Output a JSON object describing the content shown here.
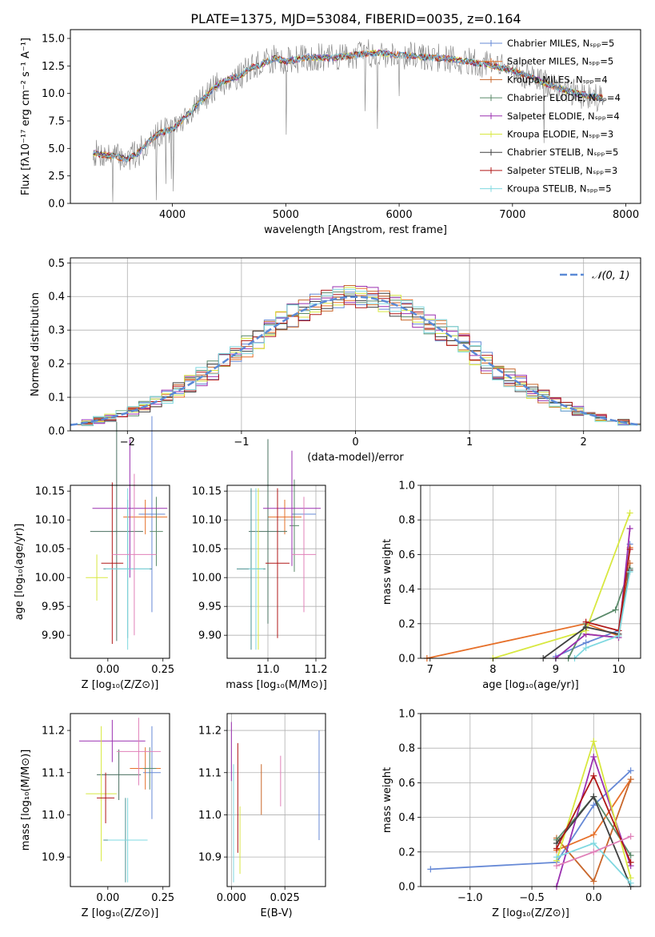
{
  "colors": [
    "#6689d6",
    "#e6702a",
    "#c8662a",
    "#5a8a6a",
    "#9b30b0",
    "#d8e840",
    "#404040",
    "#b01818",
    "#7fd8e0"
  ],
  "chart_data": [
    {
      "id": "spectrum",
      "type": "line",
      "title": "PLATE=1375, MJD=53084, FIBERID=0035, z=0.164",
      "xlabel": "wavelength [Angstrom, rest frame]",
      "ylabel": "Flux [fλ10⁻¹⁷ erg cm⁻² s⁻¹ A⁻¹]",
      "xlim": [
        3100,
        8130
      ],
      "ylim": [
        0,
        15.8
      ],
      "xticks": [
        "4000",
        "5000",
        "6000",
        "7000",
        "8000"
      ],
      "yticks": [
        "0.0",
        "2.5",
        "5.0",
        "7.5",
        "10.0",
        "12.5",
        "15.0"
      ],
      "continuum": {
        "x": [
          3300,
          3400,
          3500,
          3600,
          3700,
          3800,
          3900,
          4000,
          4100,
          4200,
          4300,
          4400,
          4500,
          4600,
          4700,
          4800,
          4900,
          5000,
          5200,
          5400,
          5600,
          5800,
          6000,
          6200,
          6400,
          6600,
          6800,
          7000,
          7200,
          7400,
          7600,
          7800
        ],
        "y": [
          4.6,
          4.4,
          4.3,
          4.0,
          4.6,
          5.7,
          6.5,
          6.7,
          7.7,
          8.8,
          9.8,
          10.8,
          11.3,
          11.6,
          12.4,
          12.7,
          13.2,
          12.9,
          13.3,
          13.2,
          13.5,
          13.7,
          13.5,
          13.3,
          13.2,
          12.9,
          12.6,
          12.1,
          11.3,
          10.5,
          9.9,
          9.6
        ]
      },
      "legend_position": "upper right",
      "legend": [
        "Chabrier MILES, Nₛₚₚ=5",
        "Salpeter MILES, Nₛₚₚ=5",
        "Kroupa MILES, Nₛₚₚ=4",
        "Chabrier ELODIE, Nₛₚₚ=4",
        "Salpeter ELODIE, Nₛₚₚ=4",
        "Kroupa ELODIE, Nₛₚₚ=3",
        "Chabrier STELIB, Nₛₚₚ=5",
        "Salpeter STELIB, Nₛₚₚ=3",
        "Kroupa STELIB, Nₛₚₚ=5"
      ]
    },
    {
      "id": "residuals",
      "type": "line",
      "xlabel": "(data-model)/error",
      "ylabel": "Normed distribution",
      "xlim": [
        -2.5,
        2.5
      ],
      "ylim": [
        0,
        0.515
      ],
      "xticks": [
        "−2",
        "−1",
        "0",
        "1",
        "2"
      ],
      "yticks": [
        "0.0",
        "0.1",
        "0.2",
        "0.3",
        "0.4",
        "0.5"
      ],
      "legend": [
        "𝒩(0, 1)"
      ],
      "legend_position": "upper right",
      "bin_width": 0.1
    },
    {
      "id": "age-vs-z",
      "type": "scatter",
      "xlabel": "Z [log₁₀(Z/Z⊙)]",
      "ylabel": "age  [log₁₀(age/yr)]",
      "xlim": [
        -0.17,
        0.28
      ],
      "ylim": [
        9.86,
        10.16
      ],
      "xticks": [
        "0.00",
        "0.25"
      ],
      "yticks": [
        "9.90",
        "9.95",
        "10.00",
        "10.05",
        "10.10",
        "10.15"
      ],
      "points": [
        {
          "x": 0.2,
          "y": 10.11,
          "xerr": 0.06,
          "yerr": 0.17
        },
        {
          "x": 0.17,
          "y": 10.105,
          "xerr": 0.1,
          "yerr": 0.03
        },
        {
          "x": 0.22,
          "y": 10.08,
          "xerr": 0.03,
          "yerr": 0.06
        },
        {
          "x": 0.04,
          "y": 10.08,
          "xerr": 0.12,
          "yerr": 0.19
        },
        {
          "x": 0.1,
          "y": 10.12,
          "xerr": 0.17,
          "yerr": 0.12
        },
        {
          "x": -0.05,
          "y": 10.0,
          "xerr": 0.05,
          "yerr": 0.04
        },
        {
          "x": 0.09,
          "y": 10.015,
          "xerr": 0.11,
          "yerr": 0.12
        },
        {
          "x": 0.02,
          "y": 10.025,
          "xerr": 0.05,
          "yerr": 0.14
        },
        {
          "x": 0.09,
          "y": 10.015,
          "xerr": 0.1,
          "yerr": 0.14
        },
        {
          "x": 0.12,
          "y": 10.04,
          "xerr": 0.1,
          "yerr": 0.14
        }
      ]
    },
    {
      "id": "age-vs-mass",
      "type": "scatter",
      "xlabel": "mass [log₁₀(M/M⊙)]",
      "xlim": [
        10.83,
        11.24
      ],
      "ylim": [
        9.86,
        10.16
      ],
      "xticks": [
        "11.0",
        "11.2"
      ],
      "yticks": [
        "9.90",
        "9.95",
        "10.00",
        "10.05",
        "10.10",
        "10.15"
      ],
      "points": [
        {
          "x": 11.15,
          "y": 10.11,
          "xerr": 0.05,
          "yerr": 0.02
        },
        {
          "x": 11.07,
          "y": 10.105,
          "xerr": 0.07,
          "yerr": 0.03
        },
        {
          "x": 11.11,
          "y": 10.09,
          "xerr": 0.02,
          "yerr": 0.08
        },
        {
          "x": 11.0,
          "y": 10.08,
          "xerr": 0.08,
          "yerr": 0.16
        },
        {
          "x": 11.1,
          "y": 10.12,
          "xerr": 0.12,
          "yerr": 0.1
        },
        {
          "x": 10.96,
          "y": 10.015,
          "xerr": 0.02,
          "yerr": 0.14
        },
        {
          "x": 10.93,
          "y": 10.015,
          "xerr": 0.06,
          "yerr": 0.14
        },
        {
          "x": 11.04,
          "y": 10.025,
          "xerr": 0.05,
          "yerr": 0.13
        },
        {
          "x": 10.95,
          "y": 10.015,
          "xerr": 0.03,
          "yerr": 0.14
        },
        {
          "x": 11.15,
          "y": 10.04,
          "xerr": 0.05,
          "yerr": 0.1
        }
      ]
    },
    {
      "id": "weight-vs-age",
      "type": "line",
      "xlabel": "age  [log₁₀(age/yr)]",
      "ylabel": "mass weight",
      "xlim": [
        6.85,
        10.35
      ],
      "ylim": [
        0,
        1.0
      ],
      "xticks": [
        "7",
        "8",
        "9",
        "10"
      ],
      "yticks": [
        "0.0",
        "0.2",
        "0.4",
        "0.6",
        "0.8",
        "1.0"
      ],
      "series": [
        {
          "x": [
            9.0,
            9.48,
            10.0,
            10.18
          ],
          "y": [
            0.01,
            0.09,
            0.16,
            0.66
          ]
        },
        {
          "x": [
            6.95,
            9.48,
            10.0,
            10.18
          ],
          "y": [
            0.0,
            0.2,
            0.13,
            0.64
          ]
        },
        {
          "x": [
            9.48,
            10.0,
            10.18
          ],
          "y": [
            0.14,
            0.12,
            0.55
          ]
        },
        {
          "x": [
            9.2,
            9.48,
            9.95,
            10.18
          ],
          "y": [
            0.0,
            0.2,
            0.28,
            0.52
          ]
        },
        {
          "x": [
            9.0,
            9.48,
            10.0,
            10.18
          ],
          "y": [
            0.0,
            0.14,
            0.12,
            0.75
          ]
        },
        {
          "x": [
            8.0,
            9.48,
            10.18
          ],
          "y": [
            0.0,
            0.16,
            0.84
          ]
        },
        {
          "x": [
            8.8,
            9.48,
            10.0,
            10.18
          ],
          "y": [
            0.0,
            0.18,
            0.14,
            0.51
          ]
        },
        {
          "x": [
            9.48,
            10.0,
            10.18
          ],
          "y": [
            0.21,
            0.16,
            0.63
          ]
        },
        {
          "x": [
            9.3,
            9.48,
            10.0,
            10.18
          ],
          "y": [
            0.0,
            0.06,
            0.13,
            0.5
          ]
        }
      ]
    },
    {
      "id": "mass-vs-z",
      "type": "scatter",
      "xlabel": "Z [log₁₀(Z/Z⊙)]",
      "ylabel": "mass [log₁₀(M/M⊙)]",
      "xlim": [
        -0.17,
        0.28
      ],
      "ylim": [
        10.83,
        11.24
      ],
      "xticks": [
        "0.00",
        "0.25"
      ],
      "yticks": [
        "10.9",
        "11.0",
        "11.1",
        "11.2"
      ],
      "points": [
        {
          "x": 0.2,
          "y": 11.1,
          "xerr": 0.04,
          "yerr": 0.11
        },
        {
          "x": 0.17,
          "y": 11.11,
          "xerr": 0.07,
          "yerr": 0.05
        },
        {
          "x": 0.19,
          "y": 11.11,
          "xerr": 0.03,
          "yerr": 0.05
        },
        {
          "x": 0.05,
          "y": 11.095,
          "xerr": 0.1,
          "yerr": 0.06
        },
        {
          "x": 0.02,
          "y": 11.175,
          "xerr": 0.15,
          "yerr": 0.05
        },
        {
          "x": -0.03,
          "y": 11.05,
          "xerr": 0.07,
          "yerr": 0.16
        },
        {
          "x": 0.08,
          "y": 10.94,
          "xerr": 0.1,
          "yerr": 0.1
        },
        {
          "x": -0.01,
          "y": 11.04,
          "xerr": 0.04,
          "yerr": 0.06
        },
        {
          "x": 0.09,
          "y": 10.94,
          "xerr": 0.09,
          "yerr": 0.1
        },
        {
          "x": 0.14,
          "y": 11.15,
          "xerr": 0.1,
          "yerr": 0.08
        }
      ]
    },
    {
      "id": "ebv",
      "type": "scatter",
      "xlabel": "E(B-V)",
      "xlim": [
        -0.002,
        0.044
      ],
      "ylim": [
        10.83,
        11.24
      ],
      "xticks": [
        "0.000",
        "0.025"
      ],
      "yticks": [
        "10.9",
        "11.0",
        "11.1",
        "11.2"
      ],
      "points": [
        {
          "x": 0.0,
          "y": 11.15,
          "yerr": 0.07,
          "xerr": 0
        },
        {
          "x": 0.001,
          "y": 10.98,
          "yerr": 0.14,
          "xerr": 0
        },
        {
          "x": 0.003,
          "y": 11.04,
          "yerr": 0.13,
          "xerr": 0
        },
        {
          "x": 0.004,
          "y": 10.94,
          "yerr": 0.08,
          "xerr": 0
        },
        {
          "x": 0.014,
          "y": 11.06,
          "yerr": 0.06,
          "xerr": 0
        },
        {
          "x": 0.023,
          "y": 11.08,
          "yerr": 0.06,
          "xerr": 0
        },
        {
          "x": 0.041,
          "y": 11.07,
          "yerr": 0.13,
          "xerr": 0
        }
      ]
    },
    {
      "id": "weight-vs-z",
      "type": "line",
      "xlabel": "Z [log₁₀(Z/Z⊙)]",
      "ylabel": "mass weight",
      "xlim": [
        -1.4,
        0.38
      ],
      "ylim": [
        0,
        1.0
      ],
      "xticks": [
        "−1.0",
        "−0.5",
        "0.0"
      ],
      "yticks": [
        "0.0",
        "0.2",
        "0.4",
        "0.6",
        "0.8",
        "1.0"
      ],
      "series": [
        {
          "x": [
            -1.32,
            -0.3,
            0.0,
            0.3
          ],
          "y": [
            0.1,
            0.14,
            0.47,
            0.67
          ]
        },
        {
          "x": [
            -0.3,
            0.0,
            0.3
          ],
          "y": [
            0.21,
            0.3,
            0.62
          ]
        },
        {
          "x": [
            -0.3,
            0.0,
            0.3
          ],
          "y": [
            0.28,
            0.03,
            0.62
          ]
        },
        {
          "x": [
            -0.3,
            0.0,
            0.3
          ],
          "y": [
            0.27,
            0.52,
            0.18
          ]
        },
        {
          "x": [
            -0.3,
            0.0,
            0.3
          ],
          "y": [
            0.0,
            0.75,
            0.12
          ]
        },
        {
          "x": [
            -0.3,
            0.0,
            0.3
          ],
          "y": [
            0.15,
            0.84,
            0.05
          ]
        },
        {
          "x": [
            -0.3,
            0.0,
            0.3
          ],
          "y": [
            0.25,
            0.52,
            0.0
          ]
        },
        {
          "x": [
            -0.3,
            0.0,
            0.3
          ],
          "y": [
            0.22,
            0.64,
            0.14
          ]
        },
        {
          "x": [
            -0.3,
            0.0,
            0.3
          ],
          "y": [
            0.17,
            0.25,
            0.02
          ]
        },
        {
          "x": [
            -0.3,
            0.0,
            0.3
          ],
          "y": [
            0.12,
            0.2,
            0.29
          ]
        }
      ]
    }
  ]
}
